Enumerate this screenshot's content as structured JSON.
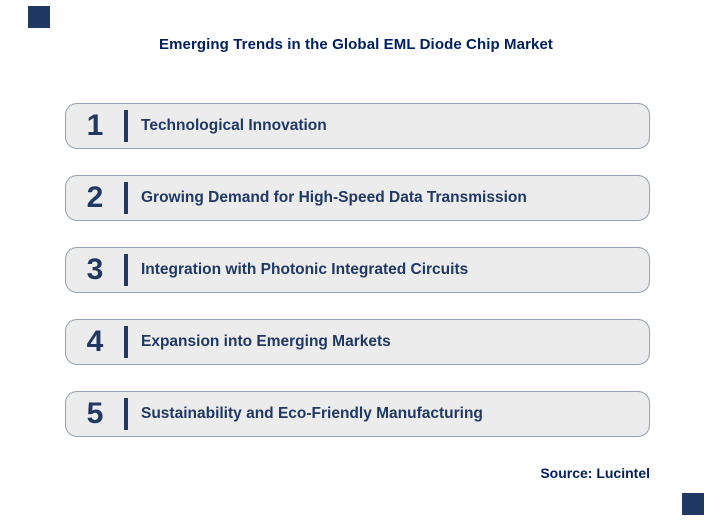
{
  "title": "Emerging Trends in the Global EML Diode Chip Market",
  "source": "Source: Lucintel",
  "colors": {
    "navy": "#1F3864",
    "title_navy": "#002060",
    "row_background": "#ECECEC",
    "row_border": "#93A0B4"
  },
  "trends": [
    {
      "number": "1",
      "label": "Technological Innovation"
    },
    {
      "number": "2",
      "label": "Growing Demand for High-Speed Data Transmission"
    },
    {
      "number": "3",
      "label": "Integration with Photonic Integrated Circuits"
    },
    {
      "number": "4",
      "label": "Expansion into Emerging Markets"
    },
    {
      "number": "5",
      "label": "Sustainability and Eco-Friendly Manufacturing"
    }
  ]
}
